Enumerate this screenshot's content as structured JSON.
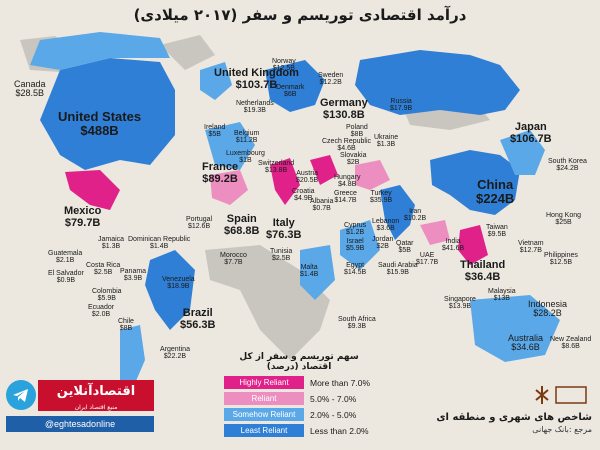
{
  "title": "درآمد اقتصادی توریسم و سفر (۲۰۱۷ میلادی)",
  "colors": {
    "highly_reliant": "#e0218a",
    "reliant": "#ec8fc0",
    "somewhat_reliant": "#5aa8e8",
    "least_reliant": "#2f7fd6",
    "land_other": "#c9c6bf",
    "ocean": "#ece8df"
  },
  "legend": {
    "title": "سهم توریسم و سفر از کل اقتصاد (درصد)",
    "items": [
      {
        "label": "Highly Reliant",
        "range": "More than 7.0%",
        "color": "#e0218a"
      },
      {
        "label": "Reliant",
        "range": "5.0% - 7.0%",
        "color": "#ec8fc0"
      },
      {
        "label": "Somehow Reliant",
        "range": "2.0% - 5.0%",
        "color": "#5aa8e8"
      },
      {
        "label": "Least Reliant",
        "range": "Less than 2.0%",
        "color": "#2f7fd6"
      }
    ]
  },
  "countries": [
    {
      "name": "Canada",
      "value": "$28.5B"
    },
    {
      "name": "United States",
      "value": "$488B"
    },
    {
      "name": "Mexico",
      "value": "$79.7B"
    },
    {
      "name": "Jamaica",
      "value": "$1.3B"
    },
    {
      "name": "Dominican Republic",
      "value": "$1.4B"
    },
    {
      "name": "Guatemala",
      "value": "$2.1B"
    },
    {
      "name": "El Salvador",
      "value": "$0.9B"
    },
    {
      "name": "Costa Rica",
      "value": "$2.5B"
    },
    {
      "name": "Panama",
      "value": "$3.9B"
    },
    {
      "name": "Colombia",
      "value": "$5.9B"
    },
    {
      "name": "Venezuela",
      "value": "$18.9B"
    },
    {
      "name": "Ecuador",
      "value": "$2.0B"
    },
    {
      "name": "Chile",
      "value": "$8B"
    },
    {
      "name": "Brazil",
      "value": "$56.3B"
    },
    {
      "name": "Argentina",
      "value": "$22.2B"
    },
    {
      "name": "United Kingdom",
      "value": "$103.7B"
    },
    {
      "name": "Ireland",
      "value": "$5B"
    },
    {
      "name": "Norway",
      "value": "$12.5B"
    },
    {
      "name": "Sweden",
      "value": "$12.2B"
    },
    {
      "name": "Denmark",
      "value": "$6B"
    },
    {
      "name": "Netherlands",
      "value": "$19.3B"
    },
    {
      "name": "Belgium",
      "value": "$11.2B"
    },
    {
      "name": "Luxembourg",
      "value": "$1B"
    },
    {
      "name": "Germany",
      "value": "$130.8B"
    },
    {
      "name": "Poland",
      "value": "$8B"
    },
    {
      "name": "Russia",
      "value": "$17.9B"
    },
    {
      "name": "Ukraine",
      "value": "$1.3B"
    },
    {
      "name": "Czech Republic",
      "value": "$4.6B"
    },
    {
      "name": "Slovakia",
      "value": "$2B"
    },
    {
      "name": "Austria",
      "value": "$20.5B"
    },
    {
      "name": "Hungary",
      "value": "$4.8B"
    },
    {
      "name": "Switzerland",
      "value": "$13.8B"
    },
    {
      "name": "France",
      "value": "$89.2B"
    },
    {
      "name": "Croatia",
      "value": "$4.9B"
    },
    {
      "name": "Albania",
      "value": "$0.7B"
    },
    {
      "name": "Greece",
      "value": "$14.7B"
    },
    {
      "name": "Turkey",
      "value": "$35.9B"
    },
    {
      "name": "Portugal",
      "value": "$12.6B"
    },
    {
      "name": "Spain",
      "value": "$68.8B"
    },
    {
      "name": "Italy",
      "value": "$76.3B"
    },
    {
      "name": "Morocco",
      "value": "$7.7B"
    },
    {
      "name": "Tunisia",
      "value": "$2.5B"
    },
    {
      "name": "Malta",
      "value": "$1.4B"
    },
    {
      "name": "Cyprus",
      "value": "$1.2B"
    },
    {
      "name": "Lebanon",
      "value": "$3.6B"
    },
    {
      "name": "Israel",
      "value": "$5.9B"
    },
    {
      "name": "Jordan",
      "value": "$2B"
    },
    {
      "name": "Iran",
      "value": "$10.2B"
    },
    {
      "name": "Qatar",
      "value": "$5B"
    },
    {
      "name": "UAE",
      "value": "$17.7B"
    },
    {
      "name": "Saudi Arabia",
      "value": "$15.9B"
    },
    {
      "name": "Egypt",
      "value": "$14.5B"
    },
    {
      "name": "South Africa",
      "value": "$9.3B"
    },
    {
      "name": "India",
      "value": "$41.6B"
    },
    {
      "name": "China",
      "value": "$224B"
    },
    {
      "name": "Japan",
      "value": "$106.7B"
    },
    {
      "name": "South Korea",
      "value": "$24.2B"
    },
    {
      "name": "Hong Kong",
      "value": "$25B"
    },
    {
      "name": "Taiwan",
      "value": "$9.5B"
    },
    {
      "name": "Vietnam",
      "value": "$12.7B"
    },
    {
      "name": "Philippines",
      "value": "$12.5B"
    },
    {
      "name": "Thailand",
      "value": "$36.4B"
    },
    {
      "name": "Malaysia",
      "value": "$13B"
    },
    {
      "name": "Singapore",
      "value": "$13.9B"
    },
    {
      "name": "Indonesia",
      "value": "$28.2B"
    },
    {
      "name": "Australia",
      "value": "$34.6B"
    },
    {
      "name": "New Zealand",
      "value": "$8.6B"
    }
  ],
  "brand": {
    "logo_text": "اقتصادآنلاین",
    "tagline": "منبع اقتصاد ایران",
    "handle": "@eghtesadonline",
    "telegram_icon": "telegram-icon"
  },
  "credit": {
    "title": "شاخص های شهری و منطقه ای",
    "source": "مرجع :بانک جهانی",
    "emblem_icon": "publisher-emblem-icon"
  }
}
